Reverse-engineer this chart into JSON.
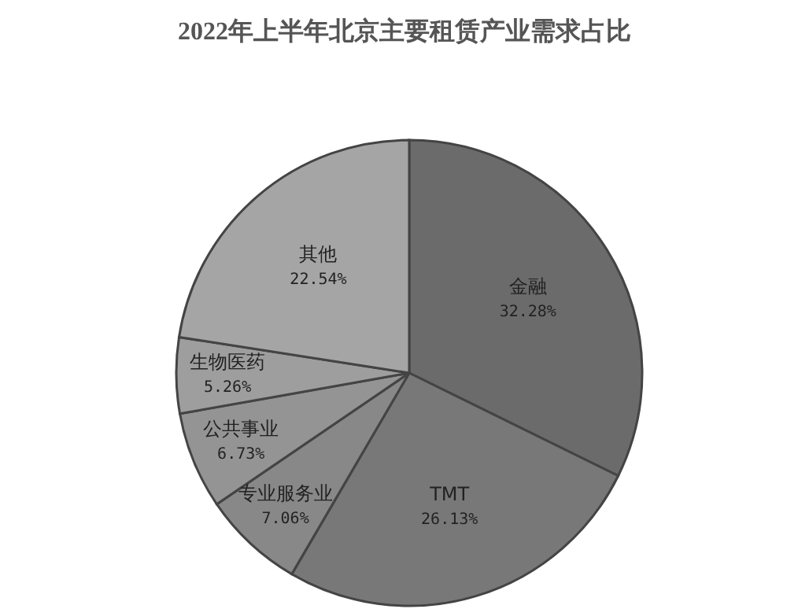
{
  "chart_data": {
    "type": "pie",
    "title": "2022年上半年北京主要租赁产业需求占比",
    "categories": [
      "金融",
      "TMT",
      "专业服务业",
      "公共事业",
      "生物医药",
      "其他"
    ],
    "values": [
      32.28,
      26.13,
      7.06,
      6.73,
      5.26,
      22.54
    ],
    "colors": [
      "#6b6b6b",
      "#787878",
      "#888888",
      "#949494",
      "#9e9e9e",
      "#a5a5a5"
    ],
    "value_labels": [
      "32.28%",
      "26.13%",
      "7.06%",
      "6.73%",
      "5.26%",
      "22.54%"
    ],
    "legend": false
  }
}
